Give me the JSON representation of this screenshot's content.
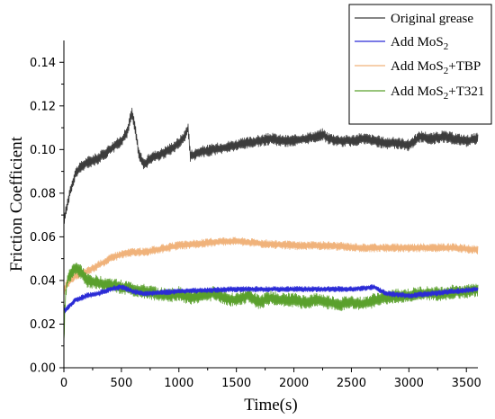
{
  "chart_data": {
    "type": "line",
    "xlabel": "Time(s)",
    "ylabel": "Friction Coefficient",
    "xlim": [
      0,
      3600
    ],
    "ylim": [
      0,
      0.15
    ],
    "xticks": [
      0,
      500,
      1000,
      1500,
      2000,
      2500,
      3000,
      3500
    ],
    "yticks": [
      0.0,
      0.02,
      0.04,
      0.06,
      0.08,
      0.1,
      0.12,
      0.14
    ],
    "ytick_labels": [
      "0.00",
      "0.02",
      "0.04",
      "0.06",
      "0.08",
      "0.10",
      "0.12",
      "0.14"
    ],
    "grid": false,
    "legend_position": "top-right",
    "series": [
      {
        "name": "Original grease",
        "legend_main": "Original grease",
        "legend_sub": "",
        "legend_suffix": "",
        "color": "#3c3c3c",
        "noise": 0.0025,
        "x": [
          0,
          20,
          50,
          100,
          150,
          200,
          300,
          400,
          500,
          550,
          590,
          620,
          650,
          700,
          750,
          850,
          950,
          1000,
          1050,
          1080,
          1100,
          1200,
          1300,
          1400,
          1500,
          1600,
          1700,
          1800,
          1900,
          2000,
          2100,
          2200,
          2250,
          2300,
          2400,
          2500,
          2600,
          2700,
          2800,
          2900,
          3000,
          3050,
          3100,
          3200,
          3300,
          3400,
          3500,
          3600
        ],
        "y": [
          0.068,
          0.072,
          0.08,
          0.089,
          0.092,
          0.094,
          0.096,
          0.1,
          0.104,
          0.108,
          0.117,
          0.11,
          0.098,
          0.093,
          0.096,
          0.098,
          0.101,
          0.103,
          0.106,
          0.11,
          0.097,
          0.099,
          0.1,
          0.101,
          0.102,
          0.103,
          0.104,
          0.105,
          0.104,
          0.104,
          0.105,
          0.106,
          0.107,
          0.105,
          0.104,
          0.104,
          0.105,
          0.104,
          0.103,
          0.103,
          0.102,
          0.104,
          0.106,
          0.105,
          0.106,
          0.105,
          0.104,
          0.105
        ]
      },
      {
        "name": "Add MoS2",
        "legend_main": "Add MoS",
        "legend_sub": "2",
        "legend_suffix": "",
        "color": "#2b2bd6",
        "noise": 0.0012,
        "x": [
          0,
          10,
          40,
          100,
          200,
          300,
          400,
          500,
          600,
          700,
          1000,
          1500,
          2000,
          2500,
          2700,
          2800,
          3000,
          3200,
          3400,
          3600
        ],
        "y": [
          0.028,
          0.026,
          0.028,
          0.031,
          0.033,
          0.034,
          0.036,
          0.037,
          0.035,
          0.034,
          0.035,
          0.036,
          0.036,
          0.036,
          0.037,
          0.034,
          0.033,
          0.034,
          0.035,
          0.036
        ]
      },
      {
        "name": "Add MoS2+TBP",
        "legend_main": "Add MoS",
        "legend_sub": "2",
        "legend_suffix": "+TBP",
        "color": "#f0b27a",
        "noise": 0.0018,
        "x": [
          0,
          20,
          60,
          100,
          200,
          300,
          400,
          500,
          600,
          700,
          800,
          1000,
          1200,
          1400,
          1500,
          1700,
          2000,
          2300,
          2600,
          2800,
          3000,
          3200,
          3400,
          3600
        ],
        "y": [
          0.035,
          0.038,
          0.04,
          0.042,
          0.044,
          0.047,
          0.05,
          0.052,
          0.053,
          0.053,
          0.054,
          0.056,
          0.057,
          0.058,
          0.058,
          0.057,
          0.056,
          0.056,
          0.055,
          0.055,
          0.055,
          0.055,
          0.055,
          0.054
        ]
      },
      {
        "name": "Add MoS2+T321",
        "legend_main": "Add MoS",
        "legend_sub": "2",
        "legend_suffix": "+T321",
        "color": "#5aa02c",
        "noise": 0.003,
        "x": [
          0,
          10,
          30,
          60,
          100,
          150,
          200,
          300,
          400,
          500,
          600,
          700,
          800,
          900,
          1000,
          1100,
          1200,
          1300,
          1400,
          1500,
          1600,
          1700,
          1800,
          1900,
          2000,
          2100,
          2200,
          2300,
          2400,
          2500,
          2600,
          2700,
          2800,
          2900,
          3000,
          3100,
          3200,
          3300,
          3400,
          3500,
          3600
        ],
        "y": [
          0.01,
          0.03,
          0.04,
          0.043,
          0.046,
          0.044,
          0.04,
          0.039,
          0.038,
          0.037,
          0.036,
          0.035,
          0.034,
          0.033,
          0.034,
          0.032,
          0.033,
          0.034,
          0.032,
          0.031,
          0.033,
          0.03,
          0.032,
          0.031,
          0.031,
          0.03,
          0.031,
          0.03,
          0.029,
          0.03,
          0.029,
          0.031,
          0.032,
          0.033,
          0.033,
          0.034,
          0.034,
          0.034,
          0.035,
          0.035,
          0.036
        ]
      }
    ]
  }
}
